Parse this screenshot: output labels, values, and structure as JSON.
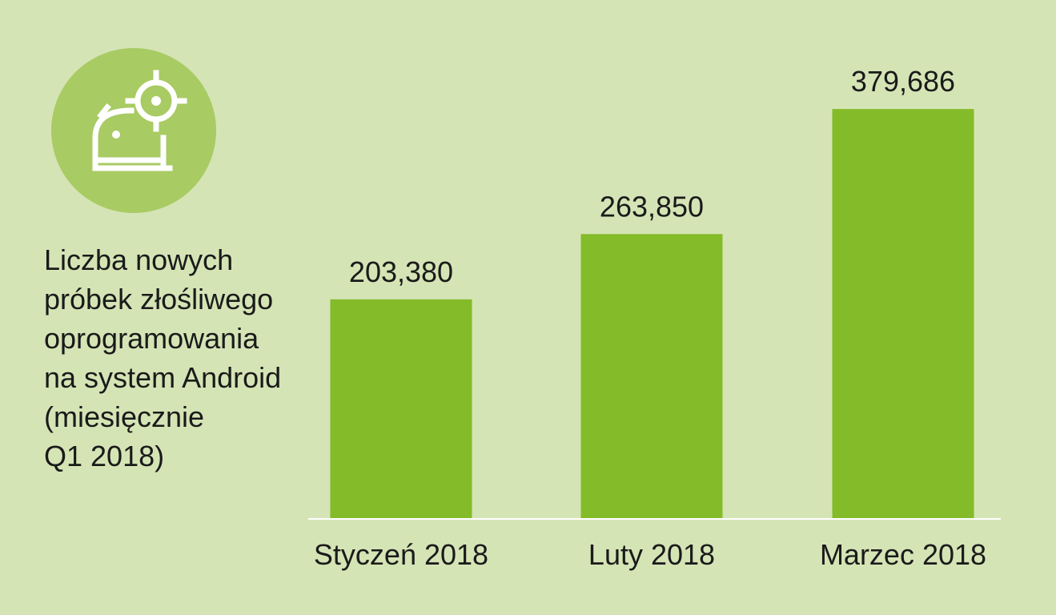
{
  "chart_data": {
    "type": "bar",
    "title": "Liczba nowych\npróbek złośliwego\noprogramowania\nna system Android\n(miesięcznie\nQ1 2018)",
    "categories": [
      "Styczeń 2018",
      "Luty 2018",
      "Marzec 2018"
    ],
    "values": [
      203380,
      263850,
      379686
    ],
    "value_labels": [
      "203,380",
      "263,850",
      "379,686"
    ],
    "ylim": [
      0,
      405000
    ],
    "grid": false,
    "legend": "none",
    "bar_color": "#84bb29",
    "axis_color": "#ffffff"
  },
  "colors": {
    "background": "#d5e4b5",
    "badge": "#a8cb63",
    "icon": "#ffffff"
  },
  "icon": "android-target-icon"
}
